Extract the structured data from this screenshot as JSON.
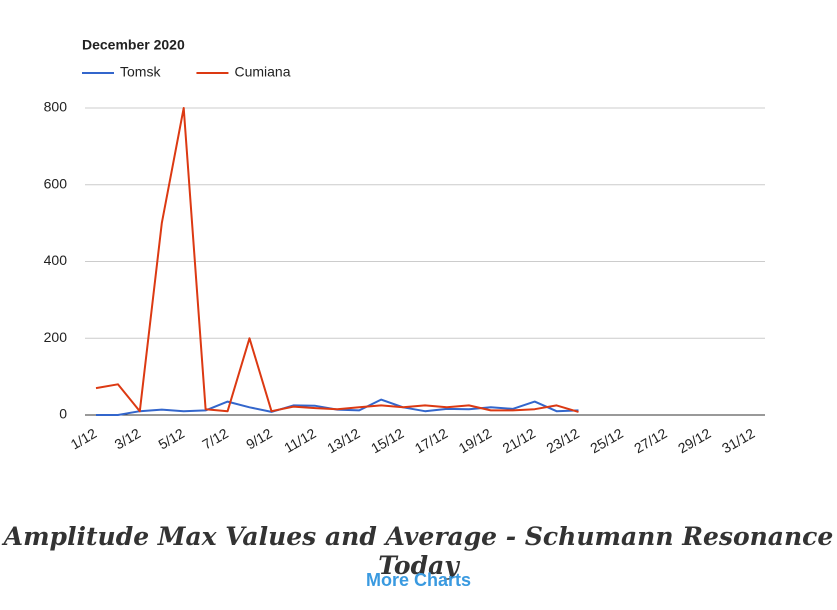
{
  "chart_data": {
    "type": "line",
    "title": "December 2020",
    "categories": [
      "1/12",
      null,
      "3/12",
      null,
      "5/12",
      null,
      "7/12",
      null,
      "9/12",
      null,
      "11/12",
      null,
      "13/12",
      null,
      "15/12",
      null,
      "17/12",
      null,
      "19/12",
      null,
      "21/12",
      null,
      "23/12",
      null,
      "25/12",
      null,
      "27/12",
      null,
      "29/12",
      null,
      "31/12"
    ],
    "series": [
      {
        "name": "Tomsk",
        "color": "#3366cc",
        "values": [
          0,
          0,
          10,
          14,
          10,
          12,
          35,
          20,
          8,
          25,
          24,
          14,
          12,
          40,
          20,
          10,
          16,
          15,
          20,
          16,
          35,
          10,
          12,
          null,
          null,
          null,
          null,
          null,
          null,
          null,
          null
        ]
      },
      {
        "name": "Cumiana",
        "color": "#dc3912",
        "values": [
          70,
          80,
          10,
          500,
          800,
          15,
          10,
          200,
          10,
          22,
          18,
          15,
          20,
          25,
          20,
          25,
          20,
          25,
          12,
          12,
          15,
          25,
          8,
          null,
          null,
          null,
          null,
          null,
          null,
          null,
          null
        ]
      }
    ],
    "ylim": [
      0,
      800
    ],
    "yticks": [
      0,
      200,
      400,
      600,
      800
    ],
    "grid": true,
    "legend": "top-left"
  },
  "caption": "Amplitude Max Values and Average - Schumann Resonance Today",
  "link": "More Charts"
}
